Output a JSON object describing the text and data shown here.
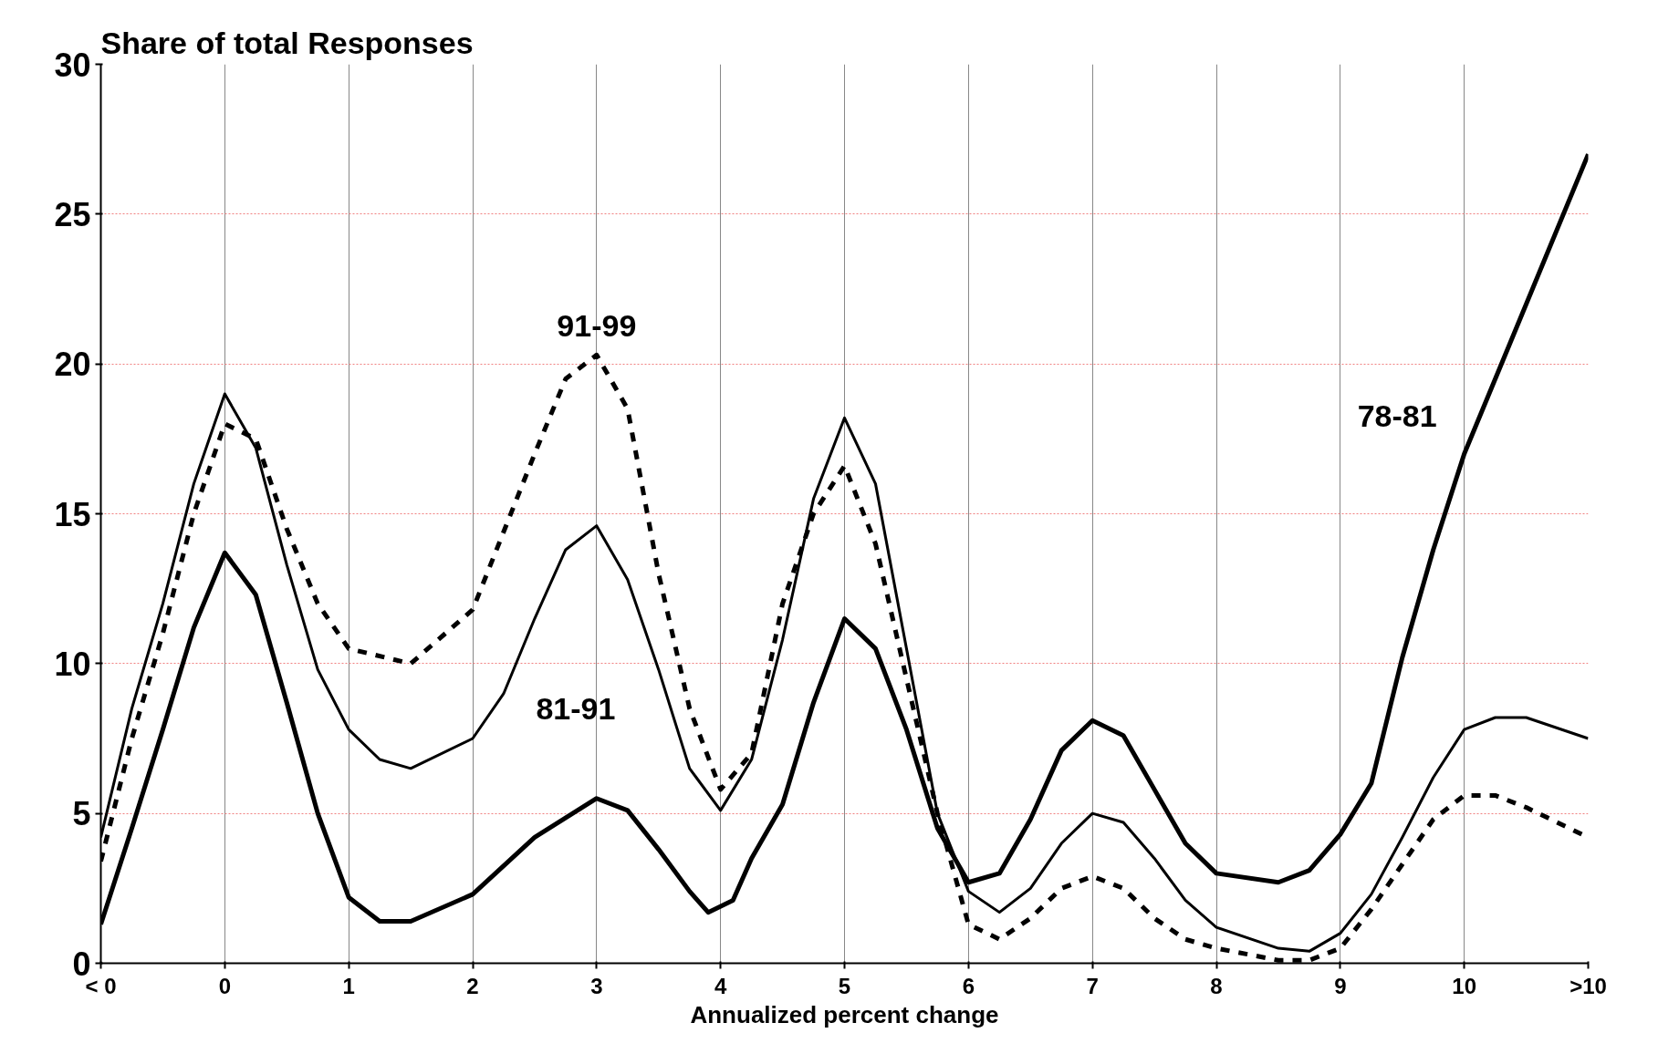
{
  "chart_data": {
    "type": "line",
    "title": "Share of total Responses",
    "xlabel": "Annualized percent change",
    "xlim": [
      -1,
      11
    ],
    "xticks": [
      {
        "value": -1,
        "label": "< 0"
      },
      0,
      1,
      2,
      3,
      4,
      5,
      6,
      7,
      8,
      9,
      10,
      {
        "value": 11,
        "label": ">10"
      }
    ],
    "ylim": [
      0,
      30
    ],
    "yticks": [
      0,
      5,
      10,
      15,
      20,
      25,
      30
    ],
    "grid": true,
    "marker": "none",
    "series": [
      {
        "name": "78-81",
        "color": "#000000",
        "line_style": "solid",
        "x": [
          -1,
          -0.75,
          -0.5,
          -0.25,
          0,
          0.25,
          0.5,
          0.75,
          1,
          1.25,
          1.5,
          2,
          2.5,
          3,
          3.25,
          3.5,
          3.75,
          3.9,
          4.1,
          4.25,
          4.5,
          4.75,
          5,
          5.25,
          5.5,
          5.75,
          6,
          6.25,
          6.5,
          6.75,
          7,
          7.25,
          7.5,
          7.75,
          8,
          8.5,
          8.75,
          9,
          9.25,
          9.5,
          9.75,
          10,
          10.5,
          11
        ],
        "values": [
          1.3,
          4.5,
          7.8,
          11.2,
          13.7,
          12.3,
          8.7,
          5,
          2.2,
          1.4,
          1.4,
          2.3,
          4.2,
          5.5,
          5.1,
          3.8,
          2.4,
          1.7,
          2.1,
          3.5,
          5.3,
          8.7,
          11.5,
          10.5,
          7.8,
          4.5,
          2.7,
          3.0,
          4.8,
          7.1,
          8.1,
          7.6,
          5.8,
          4,
          3,
          2.7,
          3.1,
          4.3,
          6,
          10.2,
          13.8,
          17,
          22,
          27
        ]
      },
      {
        "name": "81-91",
        "color": "#000000",
        "line_style": "solid",
        "x": [
          -1,
          -0.75,
          -0.5,
          -0.25,
          0,
          0.25,
          0.5,
          0.75,
          1,
          1.25,
          1.5,
          2,
          2.25,
          2.5,
          2.75,
          3,
          3.25,
          3.5,
          3.75,
          4,
          4.25,
          4.5,
          4.75,
          5,
          5.25,
          5.5,
          5.75,
          6,
          6.25,
          6.5,
          6.75,
          7,
          7.25,
          7.5,
          7.75,
          8,
          8.5,
          8.75,
          9,
          9.25,
          9.5,
          9.75,
          10,
          10.25,
          10.5,
          11
        ],
        "values": [
          4.2,
          8.5,
          12,
          16,
          19,
          17.2,
          13.3,
          9.8,
          7.8,
          6.8,
          6.5,
          7.5,
          9,
          11.5,
          13.8,
          14.6,
          12.8,
          9.8,
          6.5,
          5.1,
          6.8,
          10.8,
          15.5,
          18.2,
          16,
          10.5,
          5,
          2.4,
          1.7,
          2.5,
          4,
          5,
          4.7,
          3.5,
          2.1,
          1.2,
          0.5,
          0.4,
          1,
          2.3,
          4.2,
          6.2,
          7.8,
          8.2,
          8.2,
          7.5
        ]
      },
      {
        "name": "91-99",
        "color": "#000000",
        "line_style": "dashed",
        "x": [
          -1,
          -0.75,
          -0.5,
          -0.25,
          0,
          0.25,
          0.5,
          0.75,
          1,
          1.5,
          2,
          2.5,
          2.75,
          3,
          3.25,
          3.5,
          3.75,
          4,
          4.25,
          4.5,
          4.75,
          5,
          5.25,
          5.5,
          5.75,
          6,
          6.25,
          6.5,
          6.75,
          7,
          7.25,
          7.5,
          7.75,
          8,
          8.5,
          8.75,
          9,
          9.25,
          9.5,
          9.75,
          10,
          10.25,
          10.5,
          11
        ],
        "values": [
          3.4,
          7.5,
          11,
          15,
          18,
          17.5,
          14.5,
          12,
          10.5,
          10,
          11.8,
          17,
          19.5,
          20.3,
          18.5,
          13,
          8.5,
          5.8,
          7,
          12,
          15,
          16.6,
          14,
          9.5,
          5,
          1.3,
          0.8,
          1.5,
          2.5,
          2.9,
          2.5,
          1.5,
          0.8,
          0.5,
          0.1,
          0.1,
          0.5,
          1.8,
          3.3,
          4.8,
          5.6,
          5.6,
          5.2,
          4.2
        ]
      }
    ]
  }
}
